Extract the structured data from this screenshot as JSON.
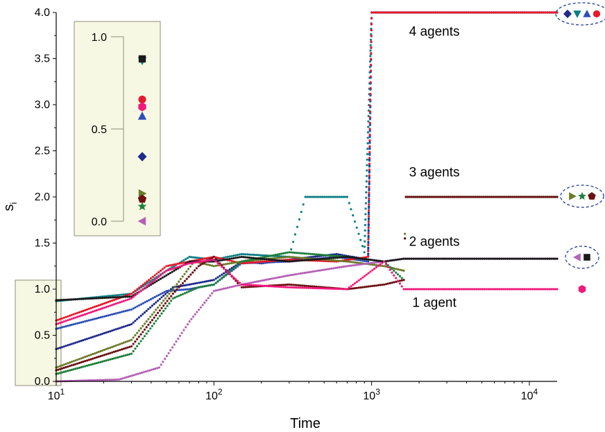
{
  "chart_data": {
    "type": "scatter",
    "xlabel": "Time",
    "ylabel": "s",
    "ylabel_sub": "i",
    "x_scale": "log",
    "xlim": [
      10,
      15000
    ],
    "ylim": [
      0,
      4.0
    ],
    "xticks": [
      {
        "value": 10,
        "base": "10",
        "exp": "1"
      },
      {
        "value": 100,
        "base": "10",
        "exp": "2"
      },
      {
        "value": 1000,
        "base": "10",
        "exp": "3"
      },
      {
        "value": 10000,
        "base": "10",
        "exp": "4"
      }
    ],
    "yticks": [
      "0.0",
      "0.5",
      "1.0",
      "1.5",
      "2.0",
      "2.5",
      "3.0",
      "3.5",
      "4.0"
    ],
    "grid": false,
    "annotations": [
      {
        "text": "4 agents",
        "x": 2500,
        "y": 3.75
      },
      {
        "text": "3 agents",
        "x": 2500,
        "y": 2.22
      },
      {
        "text": "2 agents",
        "x": 2500,
        "y": 1.47
      },
      {
        "text": "1 agent",
        "x": 2500,
        "y": 0.81
      }
    ],
    "series": [
      {
        "color": "#1f2a8a",
        "marker": "diamond",
        "initial": 0.35,
        "final": 4.0,
        "x": [
          10,
          30,
          55,
          70,
          100,
          150,
          200,
          300,
          600,
          950,
          1000,
          1100,
          15000
        ],
        "y": [
          0.35,
          0.62,
          1.02,
          1.05,
          1.1,
          1.3,
          1.28,
          1.32,
          1.38,
          1.32,
          4.0,
          4.0,
          4.0
        ]
      },
      {
        "color": "#0b7f83",
        "marker": "triangle-down",
        "initial": 0.87,
        "final": 4.0,
        "x": [
          10,
          30,
          50,
          70,
          100,
          150,
          300,
          380,
          700,
          900,
          1000,
          15000
        ],
        "y": [
          0.87,
          0.95,
          1.2,
          1.35,
          1.32,
          1.38,
          1.35,
          2.0,
          2.0,
          1.4,
          4.0,
          4.0
        ]
      },
      {
        "color": "#2e4fb5",
        "marker": "triangle-up",
        "initial": 0.57,
        "final": 4.0,
        "x": [
          10,
          30,
          50,
          70,
          100,
          150,
          300,
          600,
          950,
          1000,
          15000
        ],
        "y": [
          0.57,
          0.78,
          0.98,
          1.0,
          1.05,
          1.28,
          1.3,
          1.35,
          1.3,
          4.0,
          4.0
        ]
      },
      {
        "color": "#e8192c",
        "marker": "circle",
        "initial": 0.66,
        "final": 4.0,
        "x": [
          10,
          30,
          50,
          70,
          100,
          150,
          300,
          600,
          950,
          1000,
          15000
        ],
        "y": [
          0.66,
          0.95,
          1.25,
          1.3,
          1.35,
          1.28,
          1.32,
          1.3,
          1.35,
          4.0,
          4.0
        ]
      },
      {
        "color": "#6b7a2a",
        "marker": "triangle-right",
        "initial": 0.15,
        "final": 2.0,
        "x": [
          10,
          30,
          55,
          75,
          100,
          150,
          300,
          700,
          1200,
          1600,
          1650,
          15000
        ],
        "y": [
          0.15,
          0.45,
          1.0,
          1.3,
          1.25,
          1.3,
          1.35,
          1.3,
          1.25,
          1.2,
          2.0,
          2.0
        ]
      },
      {
        "color": "#1e7f3a",
        "marker": "star",
        "initial": 0.08,
        "final": 2.0,
        "x": [
          10,
          30,
          55,
          80,
          100,
          150,
          300,
          700,
          1200,
          1600,
          1650,
          15000
        ],
        "y": [
          0.08,
          0.3,
          0.9,
          1.02,
          1.05,
          1.3,
          1.4,
          1.35,
          1.3,
          1.1,
          2.0,
          2.0
        ]
      },
      {
        "color": "#6b0f10",
        "marker": "pentagon",
        "initial": 0.12,
        "final": 2.0,
        "x": [
          10,
          30,
          55,
          80,
          100,
          150,
          300,
          700,
          1200,
          1600,
          1650,
          15000
        ],
        "y": [
          0.12,
          0.38,
          0.95,
          1.25,
          1.35,
          1.02,
          1.05,
          1.0,
          1.05,
          1.1,
          2.0,
          2.0
        ]
      },
      {
        "color": "#b561b5",
        "marker": "triangle-left",
        "initial": 0.0,
        "final": 1.33,
        "x": [
          10,
          25,
          45,
          70,
          100,
          150,
          300,
          700,
          1200,
          1600,
          15000
        ],
        "y": [
          0.0,
          0.02,
          0.15,
          0.65,
          0.98,
          1.05,
          1.15,
          1.25,
          1.3,
          1.33,
          1.33
        ]
      },
      {
        "color": "#1a1a1a",
        "marker": "square",
        "initial": 0.88,
        "final": 1.33,
        "x": [
          10,
          30,
          50,
          70,
          100,
          150,
          300,
          700,
          1200,
          1600,
          15000
        ],
        "y": [
          0.88,
          0.92,
          1.15,
          1.3,
          1.3,
          1.35,
          1.3,
          1.35,
          1.3,
          1.33,
          1.33
        ]
      },
      {
        "color": "#f0197c",
        "marker": "hexagon",
        "initial": 0.62,
        "final": 1.0,
        "x": [
          10,
          30,
          50,
          70,
          100,
          150,
          300,
          700,
          1200,
          1600,
          15000
        ],
        "y": [
          0.62,
          0.9,
          1.2,
          1.28,
          1.32,
          1.05,
          1.02,
          1.0,
          1.3,
          1.0,
          1.0
        ]
      }
    ],
    "inset": {
      "yticks": [
        "0.0",
        "0.5",
        "1.0"
      ]
    }
  }
}
